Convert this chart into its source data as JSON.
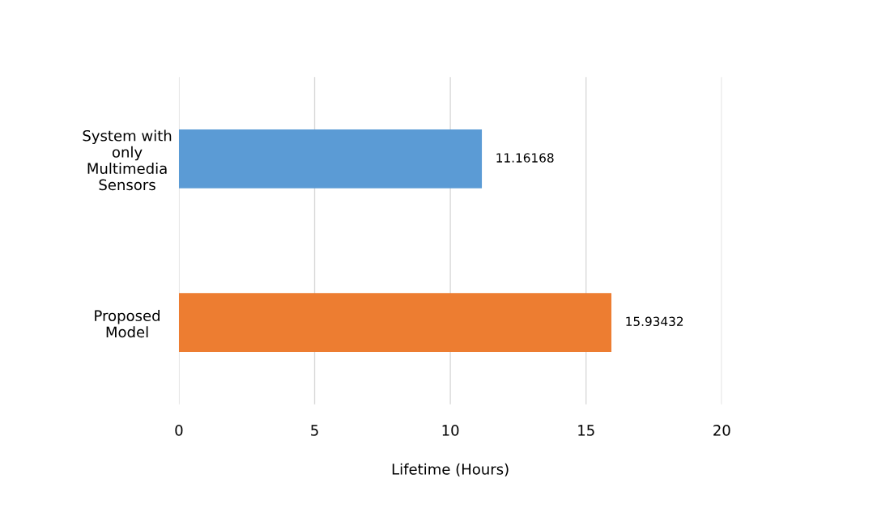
{
  "chart_data": {
    "type": "bar",
    "orientation": "horizontal",
    "xlabel": "Lifetime (Hours)",
    "categories": [
      "System with\nonly\nMultimedia\nSensors",
      "Proposed\nModel"
    ],
    "values": [
      11.16168,
      15.93432
    ],
    "colors": [
      "#5b9bd5",
      "#ed7d31"
    ],
    "xlim": [
      0,
      20
    ],
    "xticks": [
      0,
      5,
      10,
      15,
      20
    ],
    "grid": "x",
    "data_labels": true
  }
}
